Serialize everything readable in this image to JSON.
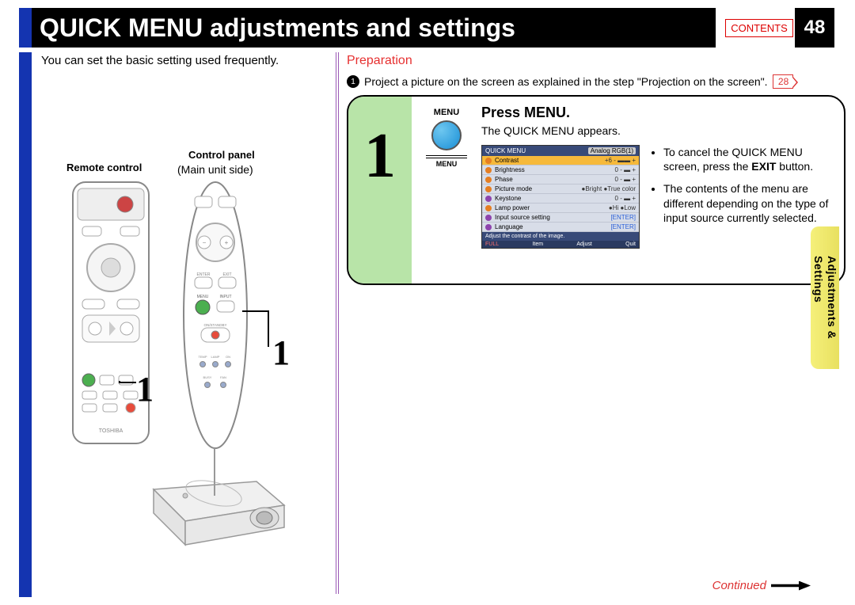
{
  "page": {
    "title": "QUICK MENU adjustments and settings",
    "contents_label": "CONTENTS",
    "number": "48",
    "intro": "You can set the basic setting used frequently.",
    "continued": "Continued"
  },
  "side_tab": {
    "line1": "Adjustments &",
    "line2": "Settings"
  },
  "preparation": {
    "heading": "Preparation",
    "bullet_text": "Project a picture on the screen as explained in the step \"Projection on the screen\".",
    "page_ref": "28"
  },
  "diagram_labels": {
    "remote": "Remote control",
    "control_panel": "Control panel",
    "control_sub": "(Main unit side)"
  },
  "callouts": {
    "a": "1",
    "b": "1"
  },
  "step1": {
    "number": "1",
    "btn_top": "MENU",
    "btn_bottom": "MENU",
    "title": "Press MENU.",
    "subtitle": "The QUICK MENU appears.",
    "bullets": [
      {
        "pre": "To cancel the QUICK MENU screen, press the ",
        "bold": "EXIT",
        "post": " button."
      },
      {
        "pre": "The contents of the menu are different depending on the type of input source currently selected.",
        "bold": "",
        "post": ""
      }
    ]
  },
  "quickmenu": {
    "title": "QUICK MENU",
    "mode": "Analog RGB(1)",
    "rows": [
      {
        "icon": "org",
        "label": "Contrast",
        "val": "+6 -",
        "slide": "▬▬",
        "sel": true
      },
      {
        "icon": "org",
        "label": "Brightness",
        "val": "0 -",
        "slide": "▬",
        "sel": false
      },
      {
        "icon": "org",
        "label": "Phase",
        "val": "0 -",
        "slide": "▬",
        "sel": false
      },
      {
        "icon": "org",
        "label": "Picture mode",
        "val": "●Bright   ●True color",
        "slide": "",
        "sel": false
      },
      {
        "icon": "pur",
        "label": "Keystone",
        "val": "0 -",
        "slide": "▬",
        "sel": false
      },
      {
        "icon": "org",
        "label": "Lamp power",
        "val": "●Hi       ●Low",
        "slide": "",
        "sel": false
      },
      {
        "icon": "pur",
        "label": "Input source setting",
        "val": "[ENTER]",
        "slide": "",
        "sel": false,
        "blue": true
      },
      {
        "icon": "pur",
        "label": "Language",
        "val": "[ENTER]",
        "slide": "",
        "sel": false,
        "blue": true
      }
    ],
    "hint": "Adjust the contrast of the image.",
    "footer": {
      "full": "FULL",
      "item": "Item",
      "adjust": "Adjust",
      "quit": "Quit"
    }
  },
  "colors": {
    "title_bg": "#000000",
    "accent_blue": "#1434b0",
    "accent_red": "#e63030",
    "step_green": "#b8e4a8",
    "side_tab_bg": "#f2ec6a",
    "qm_header": "#384a78",
    "qm_body": "#d8dde8",
    "qm_selected": "#f6b93b"
  }
}
